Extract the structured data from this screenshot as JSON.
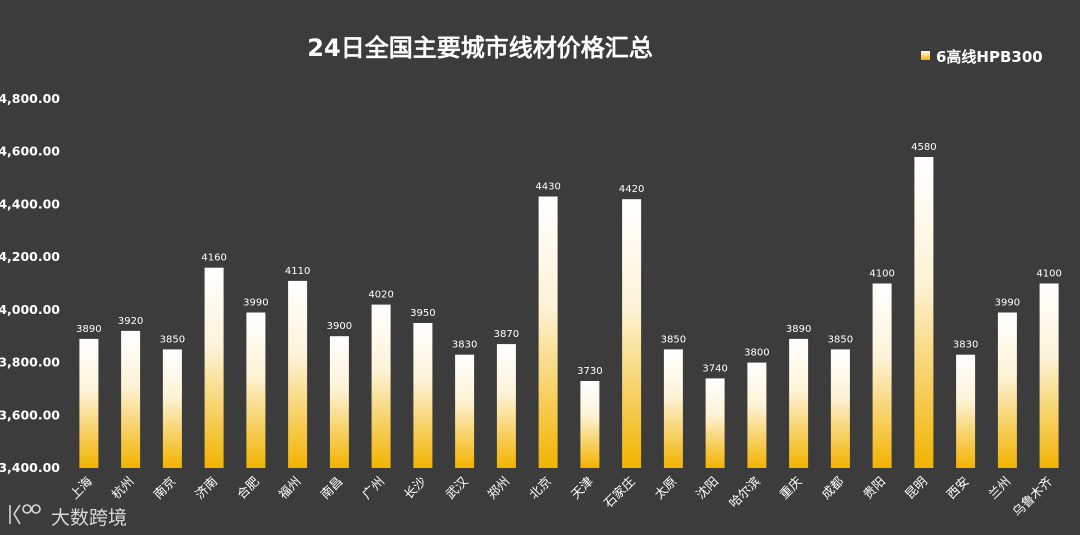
{
  "chart_data": {
    "type": "bar",
    "title": "24日全国主要城市线材价格汇总",
    "categories": [
      "上海",
      "杭州",
      "南京",
      "济南",
      "合肥",
      "福州",
      "南昌",
      "广州",
      "长沙",
      "武汉",
      "郑州",
      "北京",
      "天津",
      "石家庄",
      "太原",
      "沈阳",
      "哈尔滨",
      "重庆",
      "成都",
      "贵阳",
      "昆明",
      "西安",
      "兰州",
      "乌鲁木齐"
    ],
    "series": [
      {
        "name": "6高线HPB300",
        "values": [
          3890,
          3920,
          3850,
          4160,
          3990,
          4110,
          3900,
          4020,
          3950,
          3830,
          3870,
          4430,
          3730,
          4420,
          3850,
          3740,
          3800,
          3890,
          3850,
          4100,
          4580,
          3830,
          3990,
          4100
        ]
      }
    ],
    "value_labels": [
      "3890",
      "3920",
      "3850",
      "4160",
      "3990",
      "4110",
      "3900",
      "4020",
      "3950",
      "3830",
      "3870",
      "4430",
      "3730",
      "4420",
      "3850",
      "3740",
      "3800",
      "3890",
      "3850",
      "4100",
      "4580",
      "3830",
      "3990",
      "4100"
    ],
    "ylim": [
      3400,
      4800
    ],
    "yticks": [
      3400,
      3600,
      3800,
      4000,
      4200,
      4400,
      4600,
      4800
    ],
    "ytick_labels": [
      "3,400.00",
      "3,600.00",
      "3,800.00",
      "4,000.00",
      "4,200.00",
      "4,400.00",
      "4,600.00",
      "4,800.00"
    ],
    "legend_position": "top-right",
    "grid": false,
    "colors": {
      "background": "#3c3c3c",
      "bar_top": "#ffffff",
      "bar_bottom": "#f2b300",
      "text": "#ffffff"
    }
  },
  "watermark": {
    "text": "大数跨境"
  }
}
